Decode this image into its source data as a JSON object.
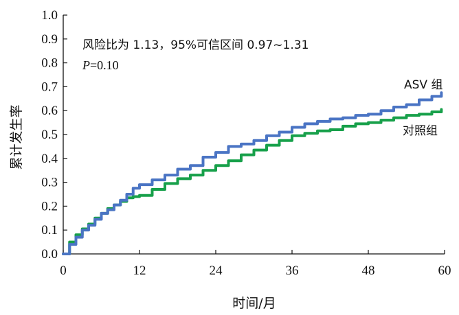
{
  "chart_data": {
    "type": "line",
    "xlabel": "时间/月",
    "ylabel": "累计发生率",
    "xlim": [
      0,
      60
    ],
    "ylim": [
      0,
      1.0
    ],
    "xticks": [
      "0",
      "12",
      "24",
      "36",
      "48",
      "60"
    ],
    "yticks": [
      "0.0",
      "0.1",
      "0.2",
      "0.3",
      "0.4",
      "0.5",
      "0.6",
      "0.7",
      "0.8",
      "0.9",
      "1.0"
    ],
    "grid": false,
    "annotations": {
      "hazard": "风险比为 1.13，95%可信区间 0.97~1.31",
      "p_label": "P",
      "p_value": "=0.10"
    },
    "series": [
      {
        "name": "ASV 组",
        "color": "#4a74c4",
        "x": [
          0,
          1,
          2,
          3,
          4,
          5,
          6,
          7,
          8,
          9,
          10,
          11,
          12,
          14,
          16,
          18,
          20,
          22,
          24,
          26,
          28,
          30,
          32,
          34,
          36,
          38,
          40,
          42,
          44,
          46,
          48,
          50,
          52,
          54,
          56,
          58,
          59.5
        ],
        "y": [
          0.0,
          0.04,
          0.07,
          0.1,
          0.12,
          0.145,
          0.17,
          0.185,
          0.205,
          0.225,
          0.25,
          0.275,
          0.29,
          0.31,
          0.33,
          0.355,
          0.37,
          0.405,
          0.425,
          0.45,
          0.46,
          0.475,
          0.495,
          0.51,
          0.53,
          0.545,
          0.555,
          0.565,
          0.57,
          0.58,
          0.585,
          0.6,
          0.615,
          0.625,
          0.645,
          0.66,
          0.675
        ]
      },
      {
        "name": "对照组",
        "color": "#17a04a",
        "x": [
          0,
          1,
          2,
          3,
          4,
          5,
          6,
          7,
          8,
          9,
          10,
          11,
          12,
          14,
          16,
          18,
          20,
          22,
          24,
          26,
          28,
          30,
          32,
          34,
          36,
          38,
          40,
          42,
          44,
          46,
          48,
          50,
          52,
          54,
          56,
          58,
          59.5
        ],
        "y": [
          0.0,
          0.05,
          0.08,
          0.105,
          0.125,
          0.15,
          0.17,
          0.19,
          0.205,
          0.22,
          0.235,
          0.24,
          0.245,
          0.27,
          0.295,
          0.315,
          0.33,
          0.35,
          0.37,
          0.39,
          0.415,
          0.435,
          0.455,
          0.475,
          0.495,
          0.505,
          0.515,
          0.52,
          0.535,
          0.545,
          0.55,
          0.56,
          0.57,
          0.58,
          0.585,
          0.595,
          0.605
        ]
      }
    ]
  }
}
